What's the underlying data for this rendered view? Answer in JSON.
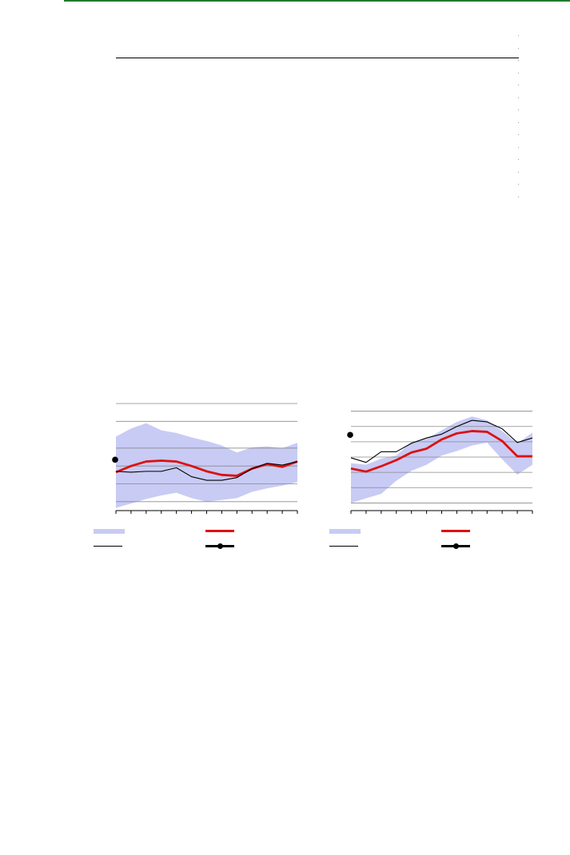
{
  "colors": {
    "header_rule": "#1e7a2e",
    "band": "#c8cbf4",
    "forecast_line": "#dd1111",
    "history_line": "#000000",
    "grid": "#8a8a8a"
  },
  "legend_labels": {
    "band": "",
    "forecast": "",
    "history": "",
    "marker": ""
  },
  "chart_data": [
    {
      "type": "line",
      "title": "",
      "xlabel": "",
      "ylabel": "",
      "x": [
        0,
        1,
        2,
        3,
        4,
        5,
        6,
        7,
        8,
        9,
        10,
        11,
        12
      ],
      "ylim": [
        0,
        120
      ],
      "gridlines": [
        10,
        30,
        50,
        70,
        100,
        120
      ],
      "band": {
        "upper": [
          83,
          92,
          98,
          90,
          87,
          82,
          78,
          73,
          65,
          71,
          72,
          70,
          76
        ],
        "lower": [
          3,
          8,
          13,
          17,
          20,
          14,
          10,
          12,
          14,
          21,
          25,
          28,
          32
        ]
      },
      "series": [
        {
          "role": "forecast",
          "values": [
            43,
            50,
            55,
            56,
            55,
            50,
            44,
            40,
            39,
            47,
            52,
            49,
            55
          ]
        },
        {
          "role": "history",
          "values": [
            44,
            43,
            44,
            44,
            48,
            38,
            34,
            34,
            37,
            47,
            53,
            51,
            55
          ]
        }
      ],
      "marker": {
        "y": 57
      },
      "xticks": 13
    },
    {
      "type": "line",
      "title": "",
      "xlabel": "",
      "ylabel": "",
      "x": [
        0,
        1,
        2,
        3,
        4,
        5,
        6,
        7,
        8,
        9,
        10,
        11,
        12
      ],
      "ylim": [
        0,
        140
      ],
      "gridlines": [
        10,
        30,
        50,
        70,
        90,
        110,
        130
      ],
      "band": {
        "upper": [
          62,
          60,
          68,
          72,
          90,
          94,
          105,
          116,
          123,
          118,
          104,
          88,
          102
        ],
        "lower": [
          10,
          16,
          22,
          39,
          52,
          60,
          72,
          78,
          85,
          89,
          67,
          47,
          60
        ]
      },
      "series": [
        {
          "role": "forecast",
          "values": [
            55,
            51,
            58,
            66,
            76,
            81,
            93,
            101,
            104,
            103,
            91,
            71,
            71
          ]
        },
        {
          "role": "history",
          "values": [
            69,
            63,
            77,
            77,
            88,
            95,
            100,
            110,
            118,
            116,
            107,
            89,
            95
          ]
        }
      ],
      "marker": {
        "y": 99
      },
      "xticks": 13
    }
  ]
}
